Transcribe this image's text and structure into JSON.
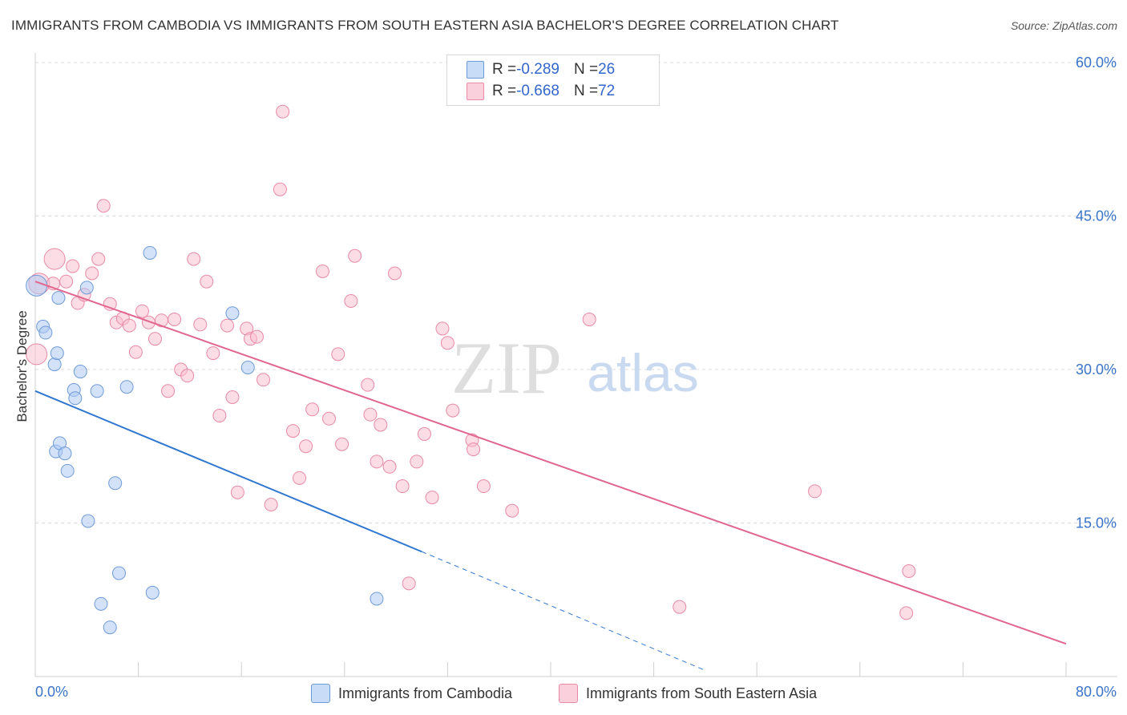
{
  "title": "IMMIGRANTS FROM CAMBODIA VS IMMIGRANTS FROM SOUTH EASTERN ASIA BACHELOR'S DEGREE CORRELATION CHART",
  "source": "Source: ZipAtlas.com",
  "watermark": {
    "zip": "ZIP",
    "atlas": "atlas"
  },
  "legend_top": [
    {
      "r_label": "R = ",
      "r_value": "-0.289",
      "n_label": "N = ",
      "n_value": "26",
      "color": "#aecbf2"
    },
    {
      "r_label": "R = ",
      "r_value": "-0.668",
      "n_label": "N = ",
      "n_value": "72",
      "color": "#f9bfd0"
    }
  ],
  "chart_data": {
    "type": "scatter",
    "title": "IMMIGRANTS FROM CAMBODIA VS IMMIGRANTS FROM SOUTH EASTERN ASIA BACHELOR'S DEGREE CORRELATION CHART",
    "xlabel": "",
    "ylabel": "Bachelor's Degree",
    "xlim": [
      0,
      80
    ],
    "ylim": [
      0,
      60
    ],
    "x_tick_labels": [
      "0.0%",
      "80.0%"
    ],
    "y_ticks": [
      15,
      30,
      45,
      60
    ],
    "y_tick_labels": [
      "15.0%",
      "30.0%",
      "45.0%",
      "60.0%"
    ],
    "grid": "horizontal dashed",
    "legend_position": "bottom",
    "series": [
      {
        "name": "Immigrants from Cambodia",
        "color": "#aecbf2",
        "edge": "#6f9bd8",
        "trend_color": "#2f77d1",
        "trend": {
          "x0": 0,
          "y0": 27.9,
          "x1": 30,
          "y1": 12.2,
          "x_dashed_end": 52,
          "y_dashed_end": 0.6
        },
        "points": [
          {
            "x": 0.1,
            "y": 38.2,
            "s": "large"
          },
          {
            "x": 0.6,
            "y": 34.2
          },
          {
            "x": 0.8,
            "y": 33.6
          },
          {
            "x": 1.5,
            "y": 30.5
          },
          {
            "x": 1.6,
            "y": 22
          },
          {
            "x": 1.7,
            "y": 31.6
          },
          {
            "x": 1.8,
            "y": 37
          },
          {
            "x": 1.9,
            "y": 22.8
          },
          {
            "x": 2.3,
            "y": 21.8
          },
          {
            "x": 2.5,
            "y": 20.1
          },
          {
            "x": 3,
            "y": 28
          },
          {
            "x": 3.1,
            "y": 27.2
          },
          {
            "x": 3.5,
            "y": 29.8
          },
          {
            "x": 4,
            "y": 38
          },
          {
            "x": 4.1,
            "y": 15.2
          },
          {
            "x": 4.8,
            "y": 27.9
          },
          {
            "x": 5.1,
            "y": 7.1
          },
          {
            "x": 5.8,
            "y": 4.8
          },
          {
            "x": 6.2,
            "y": 18.9
          },
          {
            "x": 6.5,
            "y": 10.1
          },
          {
            "x": 7.1,
            "y": 28.3
          },
          {
            "x": 8.9,
            "y": 41.4
          },
          {
            "x": 9.1,
            "y": 8.2
          },
          {
            "x": 15.3,
            "y": 35.5
          },
          {
            "x": 16.5,
            "y": 30.2
          },
          {
            "x": 26.5,
            "y": 7.6
          }
        ]
      },
      {
        "name": "Immigrants from South Eastern Asia",
        "color": "#f9bfd0",
        "edge": "#e88aa6",
        "trend_color": "#e0668f",
        "trend": {
          "x0": 0,
          "y0": 38.6,
          "x1": 80,
          "y1": 3.2
        },
        "points": [
          {
            "x": 0.1,
            "y": 31.5,
            "s": "large"
          },
          {
            "x": 0.3,
            "y": 38.4,
            "s": "large"
          },
          {
            "x": 1.4,
            "y": 38.4
          },
          {
            "x": 1.5,
            "y": 40.8,
            "s": "large"
          },
          {
            "x": 2.4,
            "y": 38.6
          },
          {
            "x": 2.9,
            "y": 40.1
          },
          {
            "x": 3.3,
            "y": 36.5
          },
          {
            "x": 3.8,
            "y": 37.3
          },
          {
            "x": 4.4,
            "y": 39.4
          },
          {
            "x": 4.9,
            "y": 40.8
          },
          {
            "x": 5.3,
            "y": 46
          },
          {
            "x": 5.8,
            "y": 36.4
          },
          {
            "x": 6.3,
            "y": 34.6
          },
          {
            "x": 6.8,
            "y": 35
          },
          {
            "x": 7.3,
            "y": 34.3
          },
          {
            "x": 7.8,
            "y": 31.7
          },
          {
            "x": 8.3,
            "y": 35.7
          },
          {
            "x": 8.8,
            "y": 34.6
          },
          {
            "x": 9.3,
            "y": 33
          },
          {
            "x": 9.8,
            "y": 34.8
          },
          {
            "x": 10.3,
            "y": 27.9
          },
          {
            "x": 10.8,
            "y": 34.9
          },
          {
            "x": 11.3,
            "y": 30
          },
          {
            "x": 11.8,
            "y": 29.4
          },
          {
            "x": 12.3,
            "y": 40.8
          },
          {
            "x": 12.8,
            "y": 34.4
          },
          {
            "x": 13.3,
            "y": 38.6
          },
          {
            "x": 13.8,
            "y": 31.6
          },
          {
            "x": 14.3,
            "y": 25.5
          },
          {
            "x": 14.9,
            "y": 34.3
          },
          {
            "x": 15.3,
            "y": 27.3
          },
          {
            "x": 15.7,
            "y": 18
          },
          {
            "x": 16.4,
            "y": 34
          },
          {
            "x": 16.7,
            "y": 33
          },
          {
            "x": 17.2,
            "y": 33.2
          },
          {
            "x": 17.7,
            "y": 29
          },
          {
            "x": 18.3,
            "y": 16.8
          },
          {
            "x": 19,
            "y": 47.6
          },
          {
            "x": 19.2,
            "y": 55.2
          },
          {
            "x": 20,
            "y": 24
          },
          {
            "x": 20.5,
            "y": 19.4
          },
          {
            "x": 21,
            "y": 22.5
          },
          {
            "x": 21.5,
            "y": 26.1
          },
          {
            "x": 22.3,
            "y": 39.6
          },
          {
            "x": 22.8,
            "y": 25.2
          },
          {
            "x": 23.5,
            "y": 31.5
          },
          {
            "x": 23.8,
            "y": 22.7
          },
          {
            "x": 24.5,
            "y": 36.7
          },
          {
            "x": 24.8,
            "y": 41.1
          },
          {
            "x": 25.8,
            "y": 28.5
          },
          {
            "x": 26,
            "y": 25.6
          },
          {
            "x": 26.5,
            "y": 21
          },
          {
            "x": 26.8,
            "y": 24.6
          },
          {
            "x": 27.5,
            "y": 20.5
          },
          {
            "x": 27.9,
            "y": 39.4
          },
          {
            "x": 28.5,
            "y": 18.6
          },
          {
            "x": 29,
            "y": 9.1
          },
          {
            "x": 29.6,
            "y": 21
          },
          {
            "x": 30.2,
            "y": 23.7
          },
          {
            "x": 30.8,
            "y": 17.5
          },
          {
            "x": 31.6,
            "y": 34
          },
          {
            "x": 32,
            "y": 32.6
          },
          {
            "x": 32.4,
            "y": 26
          },
          {
            "x": 33.9,
            "y": 23.1
          },
          {
            "x": 34,
            "y": 22.2
          },
          {
            "x": 34.8,
            "y": 18.6
          },
          {
            "x": 37,
            "y": 16.2
          },
          {
            "x": 43,
            "y": 34.9
          },
          {
            "x": 50,
            "y": 6.8
          },
          {
            "x": 60.5,
            "y": 18.1
          },
          {
            "x": 67.8,
            "y": 10.3
          },
          {
            "x": 67.6,
            "y": 6.2
          }
        ]
      }
    ]
  },
  "bottom_legend": [
    {
      "label": "Immigrants from Cambodia"
    },
    {
      "label": "Immigrants from South Eastern Asia"
    }
  ]
}
